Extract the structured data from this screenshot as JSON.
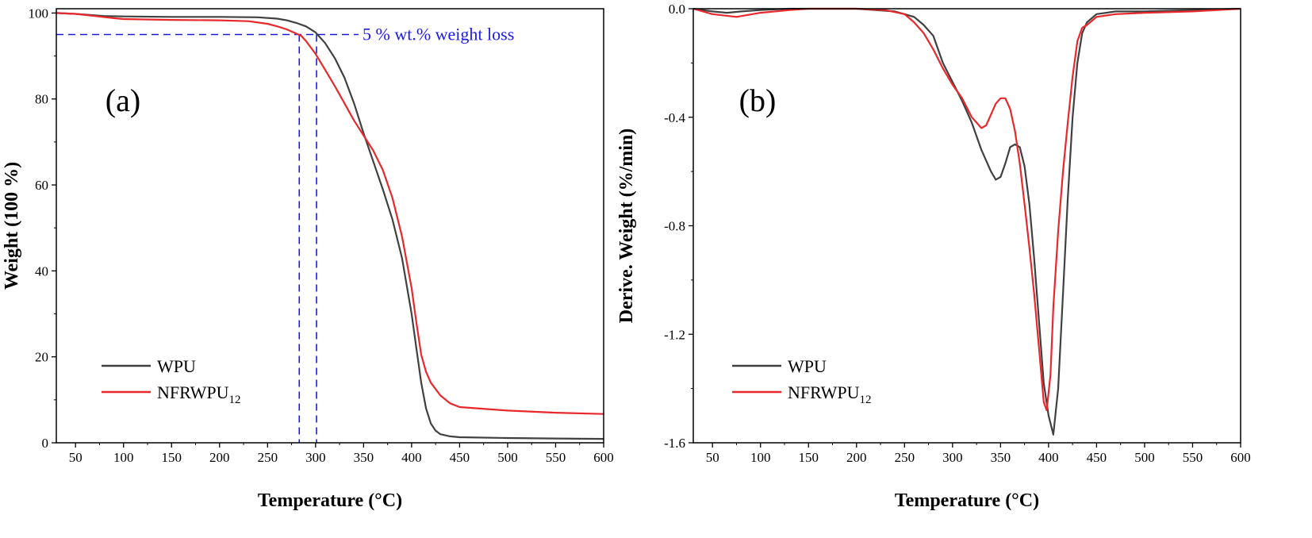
{
  "chart_data": [
    {
      "type": "line",
      "panel_label": "(a)",
      "xlabel": "Temperature (°C)",
      "ylabel": "Weight (100 %)",
      "xlim": [
        30,
        600
      ],
      "ylim": [
        0,
        101
      ],
      "xticks": [
        50,
        100,
        150,
        200,
        250,
        300,
        350,
        400,
        450,
        500,
        550,
        600
      ],
      "yticks": [
        0,
        20,
        40,
        60,
        80,
        100
      ],
      "legend_position": "bottom-left",
      "annotation": {
        "text": "5 % wt.% weight loss",
        "y": 95,
        "x_markers": [
          283,
          301
        ]
      },
      "series": [
        {
          "name": "WPU",
          "legend_main": "WPU",
          "legend_sub": "",
          "color": "#404040",
          "x": [
            30,
            50,
            80,
            100,
            150,
            200,
            240,
            260,
            270,
            280,
            290,
            300,
            310,
            320,
            330,
            340,
            350,
            360,
            370,
            380,
            390,
            400,
            405,
            410,
            415,
            420,
            425,
            430,
            440,
            450,
            500,
            550,
            600
          ],
          "y": [
            100,
            99.8,
            99.3,
            99.2,
            99.1,
            99.1,
            99.0,
            98.7,
            98.3,
            97.7,
            96.9,
            95.5,
            93.0,
            89.5,
            85.0,
            79.0,
            72.0,
            65.5,
            59.0,
            52.0,
            43.0,
            30.0,
            22.0,
            14.0,
            8.0,
            4.5,
            2.8,
            2.0,
            1.5,
            1.3,
            1.1,
            1.0,
            0.9
          ]
        },
        {
          "name": "NFRWPU12",
          "legend_main": "NFRWPU",
          "legend_sub": "12",
          "color": "#e8282b",
          "x": [
            30,
            50,
            70,
            90,
            100,
            150,
            200,
            230,
            250,
            260,
            270,
            280,
            285,
            290,
            300,
            310,
            320,
            330,
            340,
            350,
            360,
            370,
            380,
            390,
            400,
            405,
            410,
            415,
            420,
            430,
            440,
            450,
            500,
            550,
            600
          ],
          "y": [
            100,
            99.8,
            99.3,
            98.8,
            98.6,
            98.4,
            98.3,
            98.1,
            97.5,
            96.9,
            96.2,
            95.2,
            94.7,
            93.5,
            90.5,
            86.8,
            83.0,
            79.0,
            75.0,
            71.5,
            68.0,
            63.5,
            57.0,
            48.0,
            36.0,
            28.0,
            20.5,
            16.5,
            14.0,
            11.0,
            9.2,
            8.3,
            7.5,
            7.0,
            6.7
          ]
        }
      ]
    },
    {
      "type": "line",
      "panel_label": "(b)",
      "xlabel": "Temperature (°C)",
      "ylabel": "Derive. Weight (%/min)",
      "xlim": [
        30,
        600
      ],
      "ylim": [
        -1.6,
        0
      ],
      "xticks": [
        50,
        100,
        150,
        200,
        250,
        300,
        350,
        400,
        450,
        500,
        550,
        600
      ],
      "yticks": [
        0.0,
        -0.4,
        -0.8,
        -1.2,
        -1.6
      ],
      "ytick_labels": [
        "0.0",
        "-0.4",
        "-0.8",
        "-1.2",
        "-1.6"
      ],
      "legend_position": "bottom-left",
      "series": [
        {
          "name": "WPU",
          "legend_main": "WPU",
          "legend_sub": "",
          "color": "#404040",
          "x": [
            30,
            50,
            65,
            80,
            100,
            130,
            150,
            200,
            240,
            260,
            270,
            280,
            290,
            300,
            310,
            320,
            330,
            340,
            345,
            350,
            355,
            360,
            365,
            370,
            375,
            380,
            385,
            390,
            395,
            400,
            405,
            410,
            415,
            420,
            425,
            430,
            435,
            440,
            450,
            470,
            500,
            550,
            600
          ],
          "y": [
            0,
            -0.01,
            -0.015,
            -0.01,
            -0.005,
            0,
            0,
            0,
            -0.01,
            -0.03,
            -0.06,
            -0.1,
            -0.2,
            -0.27,
            -0.34,
            -0.42,
            -0.52,
            -0.6,
            -0.63,
            -0.62,
            -0.57,
            -0.51,
            -0.5,
            -0.51,
            -0.58,
            -0.72,
            -0.92,
            -1.15,
            -1.38,
            -1.5,
            -1.57,
            -1.4,
            -1.05,
            -0.7,
            -0.4,
            -0.2,
            -0.09,
            -0.05,
            -0.02,
            -0.01,
            -0.01,
            -0.005,
            0
          ]
        },
        {
          "name": "NFRWPU12",
          "legend_main": "NFRWPU",
          "legend_sub": "12",
          "color": "#e8282b",
          "x": [
            30,
            50,
            75,
            100,
            130,
            150,
            200,
            230,
            250,
            260,
            270,
            280,
            290,
            300,
            310,
            320,
            330,
            335,
            340,
            345,
            350,
            355,
            360,
            365,
            370,
            375,
            380,
            385,
            390,
            395,
            398,
            402,
            405,
            410,
            415,
            420,
            425,
            430,
            435,
            440,
            450,
            470,
            500,
            550,
            600
          ],
          "y": [
            0,
            -0.02,
            -0.03,
            -0.015,
            -0.005,
            0,
            0,
            -0.005,
            -0.02,
            -0.05,
            -0.09,
            -0.15,
            -0.22,
            -0.28,
            -0.33,
            -0.4,
            -0.44,
            -0.43,
            -0.39,
            -0.35,
            -0.33,
            -0.33,
            -0.37,
            -0.45,
            -0.57,
            -0.72,
            -0.88,
            -1.05,
            -1.25,
            -1.45,
            -1.48,
            -1.35,
            -1.1,
            -0.82,
            -0.6,
            -0.42,
            -0.25,
            -0.12,
            -0.07,
            -0.06,
            -0.03,
            -0.02,
            -0.015,
            -0.01,
            0
          ]
        }
      ]
    }
  ]
}
